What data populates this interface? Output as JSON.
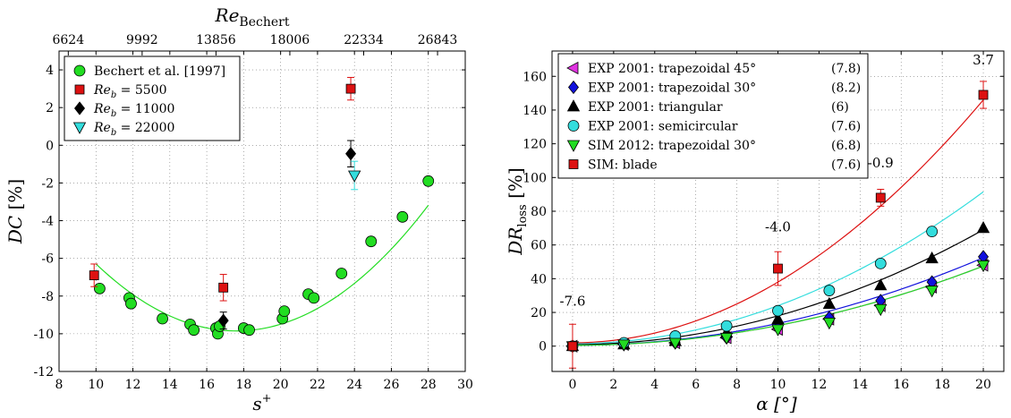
{
  "chart_data": [
    {
      "id": "left",
      "type": "scatter",
      "xlabel": "s",
      "xlabel_sup": "+",
      "ylabel_main": "DC",
      "ylabel_unit": "[%]",
      "toplabel_main": "Re",
      "toplabel_sub": "Bechert",
      "xlim": [
        8,
        30
      ],
      "ylim": [
        -12,
        5
      ],
      "xticks": [
        8,
        10,
        12,
        14,
        16,
        18,
        20,
        22,
        24,
        26,
        28,
        30
      ],
      "yticks": [
        -12,
        -10,
        -8,
        -6,
        -4,
        -2,
        0,
        2,
        4
      ],
      "top_ticks": [
        {
          "x": 8.5,
          "label": "6624"
        },
        {
          "x": 12.5,
          "label": "9992"
        },
        {
          "x": 16.5,
          "label": "13856"
        },
        {
          "x": 20.5,
          "label": "18006"
        },
        {
          "x": 24.5,
          "label": "22334"
        },
        {
          "x": 28.5,
          "label": "26843"
        }
      ],
      "grid": true,
      "legend_position": "top-left",
      "series": [
        {
          "name": "Bechert et al. [1997]",
          "marker": "circle",
          "color": "#22dd22",
          "points": [
            [
              10.2,
              -7.6
            ],
            [
              11.8,
              -8.1
            ],
            [
              11.9,
              -8.4
            ],
            [
              13.6,
              -9.2
            ],
            [
              15.1,
              -9.5
            ],
            [
              15.3,
              -9.8
            ],
            [
              16.5,
              -9.7
            ],
            [
              16.6,
              -10.0
            ],
            [
              16.7,
              -9.6
            ],
            [
              18.0,
              -9.7
            ],
            [
              18.3,
              -9.8
            ],
            [
              20.1,
              -9.2
            ],
            [
              20.2,
              -8.8
            ],
            [
              21.5,
              -7.9
            ],
            [
              21.8,
              -8.1
            ],
            [
              23.3,
              -6.8
            ],
            [
              24.9,
              -5.1
            ],
            [
              26.6,
              -3.8
            ],
            [
              28.0,
              -1.9
            ]
          ]
        },
        {
          "name": "Re_b = 5500",
          "label_main": "Re",
          "label_sub": "b",
          "label_rest": " = 5500",
          "marker": "square",
          "color": "#dd1111",
          "points": [
            [
              9.9,
              -6.9,
              0.6
            ],
            [
              16.9,
              -7.55,
              0.7
            ],
            [
              23.8,
              3.0,
              0.6
            ]
          ]
        },
        {
          "name": "Re_b = 11000",
          "label_main": "Re",
          "label_sub": "b",
          "label_rest": " = 11000",
          "marker": "diamond",
          "color": "#000000",
          "points": [
            [
              16.9,
              -9.3,
              0.45
            ],
            [
              23.8,
              -0.45,
              0.7
            ]
          ]
        },
        {
          "name": "Re_b = 22000",
          "label_main": "Re",
          "label_sub": "b",
          "label_rest": " = 22000",
          "marker": "triangle-down",
          "color": "#33dddd",
          "points": [
            [
              24.0,
              -1.6,
              0.75
            ]
          ]
        }
      ],
      "fits": [
        {
          "color": "#22dd22",
          "a": 0.0616,
          "h": 17.6,
          "k": -9.85,
          "x_range": [
            10.0,
            28.0
          ]
        }
      ]
    },
    {
      "id": "right",
      "type": "scatter",
      "xlabel": "α [°]",
      "ylabel_main": "DR",
      "ylabel_sub": "loss",
      "ylabel_unit": "[%]",
      "xlim": [
        -1,
        21
      ],
      "ylim": [
        -15,
        175
      ],
      "xticks": [
        0,
        2,
        4,
        6,
        8,
        10,
        12,
        14,
        16,
        18,
        20
      ],
      "yticks": [
        0,
        20,
        40,
        60,
        80,
        100,
        120,
        140,
        160
      ],
      "grid": true,
      "legend_position": "top-left",
      "annotations": [
        {
          "text": "-7.6",
          "x": 0.0,
          "y": 24
        },
        {
          "text": "-4.0",
          "x": 10.0,
          "y": 68
        },
        {
          "text": "-0.9",
          "x": 15.0,
          "y": 106
        },
        {
          "text": "3.7",
          "x": 20.0,
          "y": 167
        }
      ],
      "series": [
        {
          "name": "EXP 2001: trapezoidal 45°",
          "value": "(7.8)",
          "marker": "triangle-left",
          "color": "#e033e0",
          "points": [
            [
              0,
              0
            ],
            [
              2.5,
              1
            ],
            [
              5,
              2
            ],
            [
              7.5,
              5
            ],
            [
              10,
              10
            ],
            [
              12.5,
              16
            ],
            [
              15,
              24
            ],
            [
              17.5,
              35
            ],
            [
              20,
              48
            ]
          ],
          "fit": {
            "a": 0.1175,
            "b": 0,
            "c": 0.5
          }
        },
        {
          "name": "EXP 2001: trapezoidal 30°",
          "value": "(8.2)",
          "marker": "diamond",
          "color": "#1111dd",
          "points": [
            [
              0,
              0
            ],
            [
              2.5,
              1
            ],
            [
              5,
              2
            ],
            [
              7.5,
              5
            ],
            [
              10,
              11
            ],
            [
              12.5,
              17
            ],
            [
              15,
              27
            ],
            [
              17.5,
              38
            ],
            [
              20,
              53
            ]
          ],
          "fit": {
            "a": 0.13,
            "b": 0,
            "c": 0.5
          }
        },
        {
          "name": "EXP 2001: triangular",
          "value": "(6)",
          "marker": "triangle-up",
          "color": "#000000",
          "points": [
            [
              0,
              0
            ],
            [
              2.5,
              1
            ],
            [
              5,
              3
            ],
            [
              7.5,
              8
            ],
            [
              10,
              16
            ],
            [
              12.5,
              25
            ],
            [
              15,
              36
            ],
            [
              17.5,
              52
            ],
            [
              20,
              70
            ]
          ],
          "fit": {
            "a": 0.17,
            "b": 0,
            "c": 1
          }
        },
        {
          "name": "EXP 2001: semicircular",
          "value": "(7.6)",
          "marker": "circle",
          "color": "#33dddd",
          "points": [
            [
              0,
              0
            ],
            [
              2.5,
              2
            ],
            [
              5,
              6
            ],
            [
              7.5,
              12
            ],
            [
              10,
              21
            ],
            [
              12.5,
              33
            ],
            [
              15,
              49
            ],
            [
              17.5,
              68
            ]
          ],
          "fit": {
            "a": 0.225,
            "b": 0,
            "c": 1.5
          }
        },
        {
          "name": "SIM 2012: trapezoidal 30°",
          "value": "(6.8)",
          "marker": "triangle-down",
          "color": "#22dd22",
          "points": [
            [
              0,
              0
            ],
            [
              2.5,
              1
            ],
            [
              5,
              2
            ],
            [
              7.5,
              5
            ],
            [
              10,
              10
            ],
            [
              12.5,
              14
            ],
            [
              15,
              22
            ],
            [
              17.5,
              33
            ],
            [
              20,
              48
            ]
          ],
          "fit": {
            "a": 0.1175,
            "b": 0,
            "c": 0.5
          }
        },
        {
          "name": "SIM: blade",
          "value": "(7.6)",
          "marker": "square",
          "color": "#dd1111",
          "points": [
            [
              0,
              0,
              13
            ],
            [
              10,
              46,
              10
            ],
            [
              15,
              88,
              5
            ],
            [
              20,
              149,
              8
            ]
          ],
          "fit": {
            "a": 0.36,
            "b": 0,
            "c": 2
          }
        }
      ]
    }
  ]
}
